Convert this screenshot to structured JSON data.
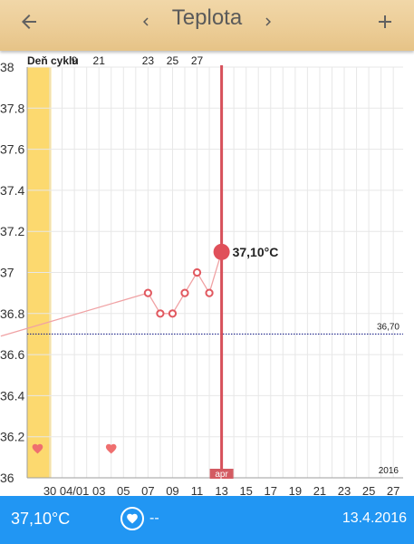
{
  "header": {
    "title": "Teplota",
    "back_icon": "arrow-left-icon",
    "prev_icon": "chevron-left-icon",
    "next_icon": "chevron-right-icon",
    "add_icon": "plus-icon"
  },
  "chart_data": {
    "type": "line",
    "cycle_label": "Deň cyklu",
    "cycle_days": [
      {
        "label": "9",
        "date": "01"
      },
      {
        "label": "21",
        "date": "03"
      },
      {
        "label": "23",
        "date": "07"
      },
      {
        "label": "25",
        "date": "09"
      },
      {
        "label": "27",
        "date": "11"
      }
    ],
    "y_ticks": [
      "38",
      "37.8",
      "37.6",
      "37.4",
      "37.2",
      "37",
      "36.8",
      "36.6",
      "36.4",
      "36.2",
      "36"
    ],
    "ylim": [
      36,
      38
    ],
    "x_ticks": [
      {
        "label": "30",
        "day": 30
      },
      {
        "label": "04/01",
        "day": 32
      },
      {
        "label": "03",
        "day": 34
      },
      {
        "label": "05",
        "day": 36
      },
      {
        "label": "07",
        "day": 38
      },
      {
        "label": "09",
        "day": 40
      },
      {
        "label": "11",
        "day": 42
      },
      {
        "label": "13",
        "day": 44
      },
      {
        "label": "15",
        "day": 46
      },
      {
        "label": "17",
        "day": 48
      },
      {
        "label": "19",
        "day": 50
      },
      {
        "label": "21",
        "day": 52
      },
      {
        "label": "23",
        "day": 54
      },
      {
        "label": "25",
        "day": 56
      },
      {
        "label": "27",
        "day": 58
      }
    ],
    "xlim": [
      28.15,
      58.8
    ],
    "year_label": "2016",
    "month_label": "apr",
    "fertile_band": {
      "from_day": 28.15,
      "to_day": 30.1
    },
    "baseline": {
      "value": 36.7,
      "label": "36,70"
    },
    "series": [
      {
        "points": [
          {
            "day": 26.0,
            "value": 36.69
          },
          {
            "day": 38.0,
            "value": 36.9
          },
          {
            "day": 39.0,
            "value": 36.8
          },
          {
            "day": 40.0,
            "value": 36.8
          },
          {
            "day": 41.0,
            "value": 36.9
          },
          {
            "day": 42.0,
            "value": 37.0
          },
          {
            "day": 43.0,
            "value": 36.9
          },
          {
            "day": 44.0,
            "value": 37.1
          }
        ]
      }
    ],
    "selected": {
      "day": 44.0,
      "value": 37.1,
      "label": "37,10°C"
    },
    "hearts": [
      {
        "day": 29.0
      },
      {
        "day": 35.0
      }
    ],
    "colors": {
      "band": "#fcd96f",
      "line": "#f0a2a4",
      "marker": "#e1585f",
      "selected": "#d7505a",
      "baseline": "#232a8c",
      "grid": "#e7e7e7"
    }
  },
  "bottom": {
    "temperature": "37,10°C",
    "heart_icon": "heart-icon",
    "intercourse_value": "--",
    "date": "13.4.2016"
  }
}
